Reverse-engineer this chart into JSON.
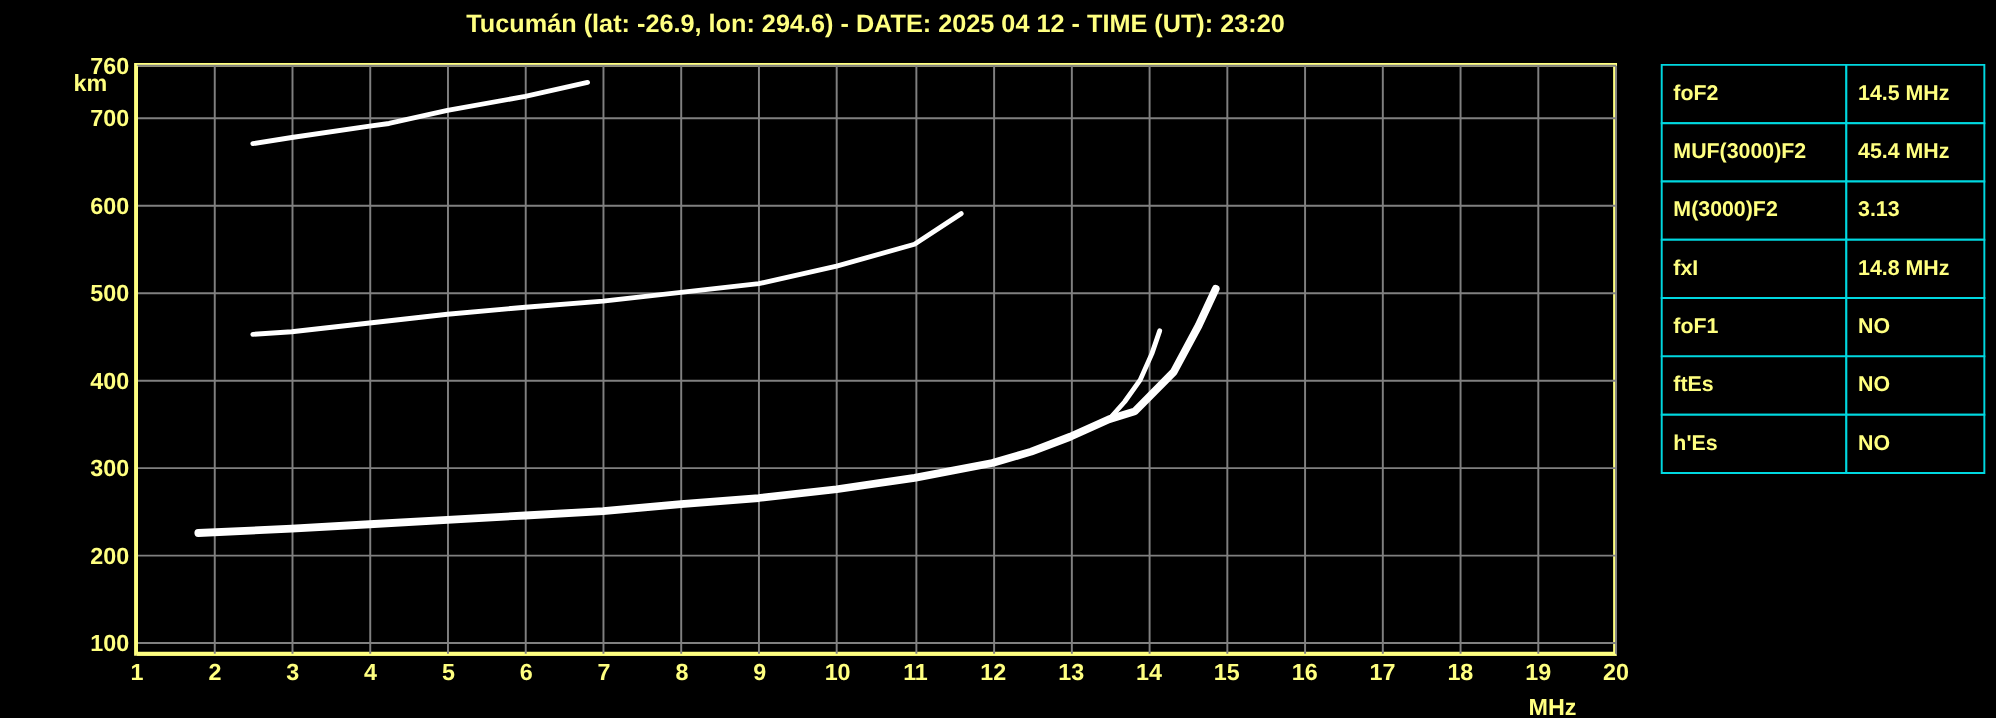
{
  "chart_data": [
    {
      "type": "line",
      "title": "Tucumán (lat: -26.9, lon: 294.6) - DATE: 2025 04 12 - TIME (UT): 23:20",
      "xlabel": "MHz",
      "ylabel": "km",
      "xlim": [
        1,
        20
      ],
      "ylim": [
        87,
        760
      ],
      "xticks": [
        1,
        2,
        3,
        4,
        5,
        6,
        7,
        8,
        9,
        10,
        11,
        12,
        13,
        14,
        15,
        16,
        17,
        18,
        19,
        20
      ],
      "yticks": [
        100,
        200,
        300,
        400,
        500,
        600,
        700,
        760
      ],
      "grid": true,
      "series": [
        {
          "color": "#ffffff",
          "x": [
            1.8,
            3,
            4,
            5,
            6,
            7,
            8,
            9,
            10,
            11,
            12,
            12.5,
            13,
            13.5,
            13.83,
            14.33,
            14.65,
            14.87
          ],
          "values": [
            225,
            230,
            235,
            240,
            245,
            250,
            258,
            265,
            275,
            288,
            305,
            318,
            335,
            355,
            364,
            409,
            462,
            504
          ]
        },
        {
          "color": "#ffffff",
          "x": [
            13.5,
            13.7,
            13.9,
            14.05,
            14.15
          ],
          "values": [
            355,
            375,
            400,
            430,
            456
          ]
        },
        {
          "color": "#ffffff",
          "x": [
            2.5,
            3,
            4,
            5,
            6,
            7,
            8,
            9,
            10,
            11,
            11.6
          ],
          "values": [
            452,
            455,
            465,
            475,
            483,
            490,
            500,
            510,
            530,
            555,
            590
          ]
        },
        {
          "color": "#ffffff",
          "x": [
            2.5,
            3,
            4,
            4.25,
            5,
            6,
            6.8
          ],
          "values": [
            670,
            677,
            690,
            693,
            708,
            724,
            740
          ]
        }
      ]
    },
    {
      "type": "other",
      "annotations": [
        "foF2",
        "14.5 MHz",
        "MUF(3000)F2",
        "45.4 MHz",
        "M(3000)F2",
        "3.13",
        "fxI",
        "14.8 MHz",
        "foF1",
        "NO",
        "ftEs",
        "NO",
        "h'Es",
        "NO"
      ]
    }
  ]
}
